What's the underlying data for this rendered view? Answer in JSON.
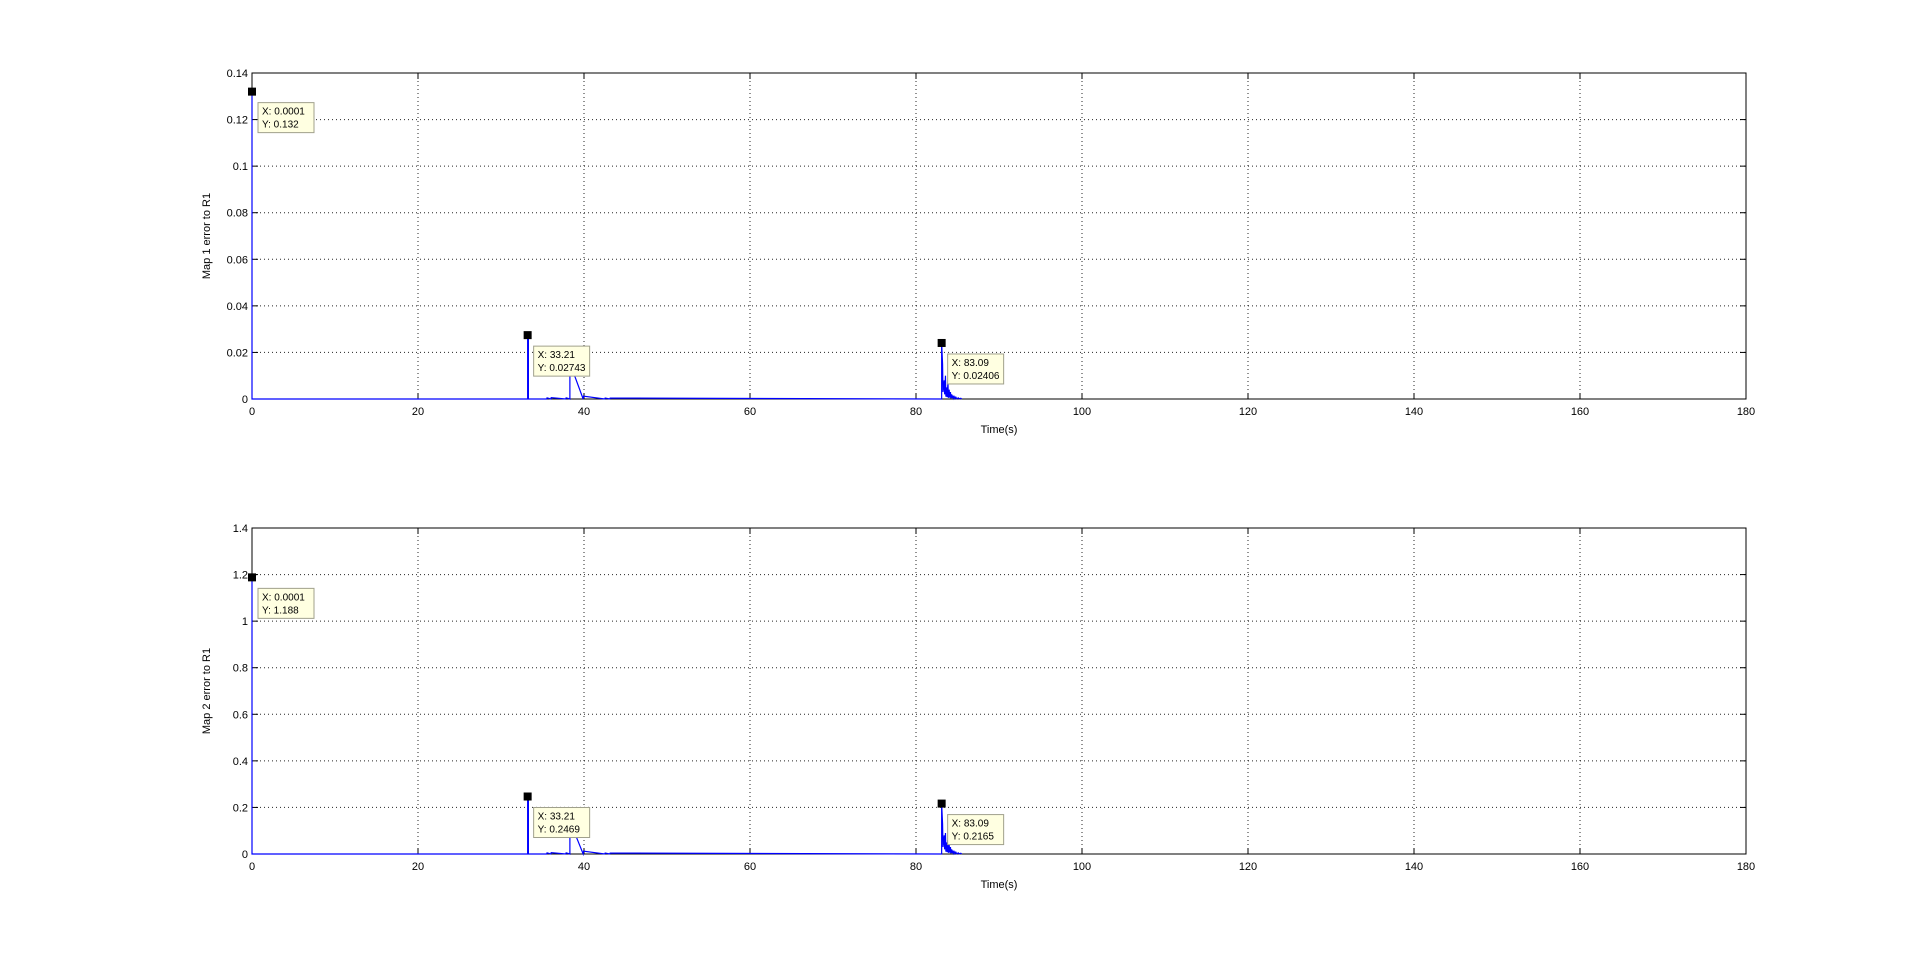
{
  "colors": {
    "background": "#ffffff",
    "axes": "#000000",
    "grid": "#000000",
    "series": "#0000ff",
    "datatip_fill": "#ffffe1",
    "datatip_border": "#a0a08c",
    "marker": "#000000"
  },
  "chart_data": [
    {
      "type": "line",
      "title": "",
      "xlabel": "Time(s)",
      "ylabel": "Map 1 error to R1",
      "xlim": [
        0,
        180
      ],
      "ylim": [
        0,
        0.14
      ],
      "xticks": [
        0,
        20,
        40,
        60,
        80,
        100,
        120,
        140,
        160,
        180
      ],
      "yticks": [
        0,
        0.02,
        0.04,
        0.06,
        0.08,
        0.1,
        0.12,
        0.14
      ],
      "grid": true,
      "legend": "none",
      "series": [
        {
          "x": [
            0.0001,
            0.0001,
            33.21,
            33.21,
            33.3,
            33.3,
            35.5,
            35.55,
            36.0,
            36.05,
            37.8,
            37.85,
            38.3,
            38.3,
            39.9,
            39.95,
            42.5,
            42.55,
            43.1,
            43.15,
            83.09,
            83.09,
            83.2,
            83.25,
            83.4,
            83.45,
            83.55,
            83.6,
            83.7,
            83.75,
            83.85,
            83.9,
            84.0,
            84.05,
            84.15,
            84.2,
            84.3,
            84.35,
            84.45,
            84.5,
            84.6,
            84.7,
            84.8,
            84.9,
            85.1,
            85.2,
            85.4,
            85.5
          ],
          "y": [
            0.132,
            0,
            0,
            0.02743,
            0.02743,
            0,
            0,
            0.0005,
            0,
            0.0006,
            0,
            0.0005,
            0,
            0.0155,
            0,
            0.0012,
            0,
            0.0004,
            0,
            0.0004,
            0,
            0.02406,
            0.015,
            0.003,
            0.008,
            0.002,
            0.01,
            0.001,
            0.005,
            0.0008,
            0.007,
            0.0005,
            0.004,
            0.0006,
            0.003,
            0.0003,
            0.002,
            0.0004,
            0.0015,
            0.0003,
            0.001,
            0.0002,
            0.0008,
            0.0001,
            0.0005,
            0.0001,
            0.0003,
            0
          ]
        }
      ],
      "datatips": [
        {
          "x": 0.0001,
          "y": 0.132,
          "line1": "X: 0.0001",
          "line2": "Y: 0.132"
        },
        {
          "x": 33.21,
          "y": 0.02743,
          "line1": "X: 33.21",
          "line2": "Y: 0.02743"
        },
        {
          "x": 83.09,
          "y": 0.02406,
          "line1": "X: 83.09",
          "line2": "Y: 0.02406"
        }
      ]
    },
    {
      "type": "line",
      "title": "",
      "xlabel": "Time(s)",
      "ylabel": "Map 2 error to R1",
      "xlim": [
        0,
        180
      ],
      "ylim": [
        0,
        1.4
      ],
      "xticks": [
        0,
        20,
        40,
        60,
        80,
        100,
        120,
        140,
        160,
        180
      ],
      "yticks": [
        0,
        0.2,
        0.4,
        0.6,
        0.8,
        1,
        1.2,
        1.4
      ],
      "grid": true,
      "legend": "none",
      "series": [
        {
          "x": [
            0.0001,
            0.0001,
            33.21,
            33.21,
            33.3,
            33.3,
            35.5,
            35.55,
            36.0,
            36.05,
            37.8,
            37.85,
            38.3,
            38.3,
            39.9,
            39.95,
            42.5,
            42.55,
            43.1,
            43.15,
            83.09,
            83.09,
            83.2,
            83.25,
            83.4,
            83.45,
            83.55,
            83.6,
            83.7,
            83.75,
            83.85,
            83.9,
            84.0,
            84.05,
            84.15,
            84.2,
            84.3,
            84.35,
            84.45,
            84.5,
            84.6,
            84.7,
            84.8,
            84.9,
            85.1,
            85.2,
            85.4,
            85.5
          ],
          "y": [
            1.188,
            0,
            0,
            0.2469,
            0.2469,
            0,
            0,
            0.005,
            0,
            0.006,
            0,
            0.005,
            0,
            0.142,
            0,
            0.012,
            0,
            0.004,
            0,
            0.004,
            0,
            0.2165,
            0.13,
            0.03,
            0.08,
            0.02,
            0.09,
            0.01,
            0.05,
            0.008,
            0.06,
            0.005,
            0.04,
            0.006,
            0.03,
            0.003,
            0.02,
            0.004,
            0.015,
            0.003,
            0.01,
            0.002,
            0.008,
            0.001,
            0.005,
            0.001,
            0.003,
            0
          ]
        }
      ],
      "datatips": [
        {
          "x": 0.0001,
          "y": 1.188,
          "line1": "X: 0.0001",
          "line2": "Y: 1.188"
        },
        {
          "x": 33.21,
          "y": 0.2469,
          "line1": "X: 33.21",
          "line2": "Y: 0.2469"
        },
        {
          "x": 83.09,
          "y": 0.2165,
          "line1": "X: 83.09",
          "line2": "Y: 0.2165"
        }
      ]
    }
  ]
}
